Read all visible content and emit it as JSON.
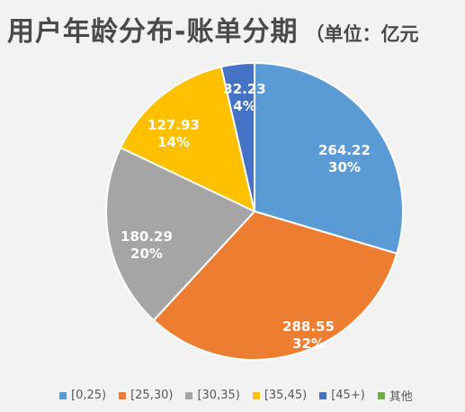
{
  "title": {
    "main": "用户年龄分布-账单分期",
    "unit_note": "（单位：亿元"
  },
  "chart_data": {
    "type": "pie",
    "categories": [
      "[0,25)",
      "[25,30)",
      "[30,35)",
      "[35,45)",
      "[45+)",
      "其他"
    ],
    "values": [
      264.22,
      288.55,
      180.29,
      127.93,
      32.23,
      0
    ],
    "percent_labels": [
      "30%",
      "32%",
      "20%",
      "14%",
      "4%",
      ""
    ],
    "value_labels": [
      "264.22",
      "288.55",
      "180.29",
      "127.93",
      "32.23",
      ""
    ],
    "colors": [
      "#5b9bd5",
      "#ed7d31",
      "#a5a5a5",
      "#ffc000",
      "#4472c4",
      "#70ad47"
    ],
    "start_angle_deg": 0,
    "direction": "clockwise",
    "legend_position": "bottom"
  }
}
